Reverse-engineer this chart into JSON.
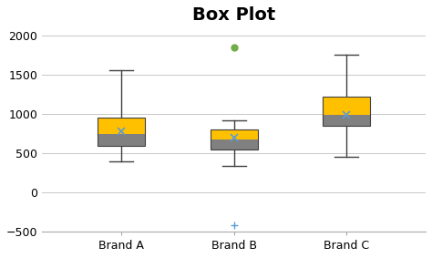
{
  "title": "Box Plot",
  "title_fontsize": 14,
  "title_fontweight": "bold",
  "categories": [
    "Brand A",
    "Brand B",
    "Brand C"
  ],
  "xlim": [
    0.3,
    3.7
  ],
  "ylim": [
    -500,
    2100
  ],
  "yticks": [
    -500,
    0,
    500,
    1000,
    1500,
    2000
  ],
  "background_color": "#ffffff",
  "box_color_bottom": "#808080",
  "box_color_top": "#FFC000",
  "whisker_color": "#404040",
  "mean_marker_color": "#5B9BD5",
  "outlier_color": "#70AD47",
  "low_outlier_color": "#5B9BD5",
  "boxes": [
    {
      "x": 1,
      "q1": 590,
      "median": 740,
      "q3": 950,
      "whisker_low": 400,
      "whisker_high": 1560,
      "mean": 775,
      "outliers": [],
      "low_outliers": []
    },
    {
      "x": 2,
      "q1": 545,
      "median": 675,
      "q3": 800,
      "whisker_low": 340,
      "whisker_high": 920,
      "mean": 695,
      "outliers": [
        1850
      ],
      "low_outliers": [
        -420
      ]
    },
    {
      "x": 3,
      "q1": 845,
      "median": 990,
      "q3": 1220,
      "whisker_low": 450,
      "whisker_high": 1750,
      "mean": 985,
      "outliers": [],
      "low_outliers": []
    }
  ],
  "box_width": 0.42,
  "grid_color": "#C8C8C8",
  "tick_label_fontsize": 9,
  "spine_color": "#AAAAAA"
}
